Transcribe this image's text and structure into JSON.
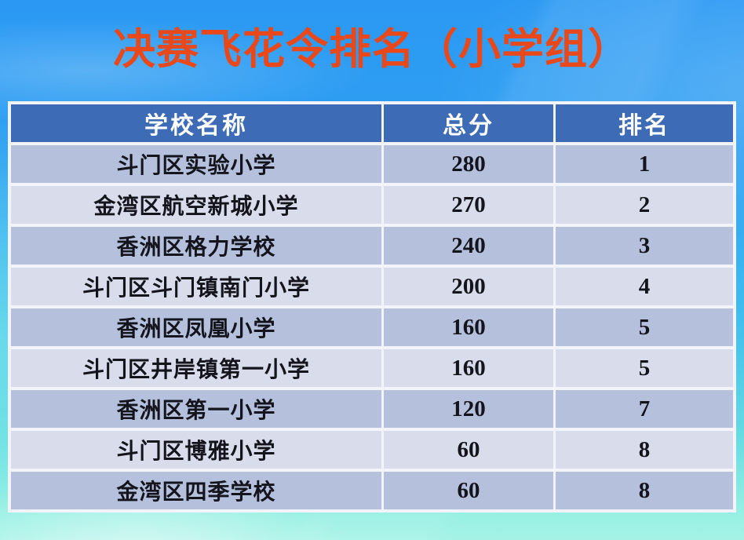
{
  "title": "决赛飞花令排名（小学组）",
  "colors": {
    "title_text": "#E8481A",
    "header_bg": "#3E6BB5",
    "header_text": "#FFFFFF",
    "row_dark_bg": "#B4C0DC",
    "row_light_bg": "#D8DCEB",
    "cell_text": "#14141C",
    "bg_top": "#2B99F3",
    "bg_bottom": "#A5F2E6",
    "grid_line": "#F2F4F9"
  },
  "table": {
    "headers": [
      "学校名称",
      "总分",
      "排名"
    ],
    "rows": [
      {
        "school": "斗门区实验小学",
        "score": "280",
        "rank": "1"
      },
      {
        "school": "金湾区航空新城小学",
        "score": "270",
        "rank": "2"
      },
      {
        "school": "香洲区格力学校",
        "score": "240",
        "rank": "3"
      },
      {
        "school": "斗门区斗门镇南门小学",
        "score": "200",
        "rank": "4"
      },
      {
        "school": "香洲区凤凰小学",
        "score": "160",
        "rank": "5"
      },
      {
        "school": "斗门区井岸镇第一小学",
        "score": "160",
        "rank": "5"
      },
      {
        "school": "香洲区第一小学",
        "score": "120",
        "rank": "7"
      },
      {
        "school": "斗门区博雅小学",
        "score": "60",
        "rank": "8"
      },
      {
        "school": "金湾区四季学校",
        "score": "60",
        "rank": "8"
      }
    ]
  }
}
